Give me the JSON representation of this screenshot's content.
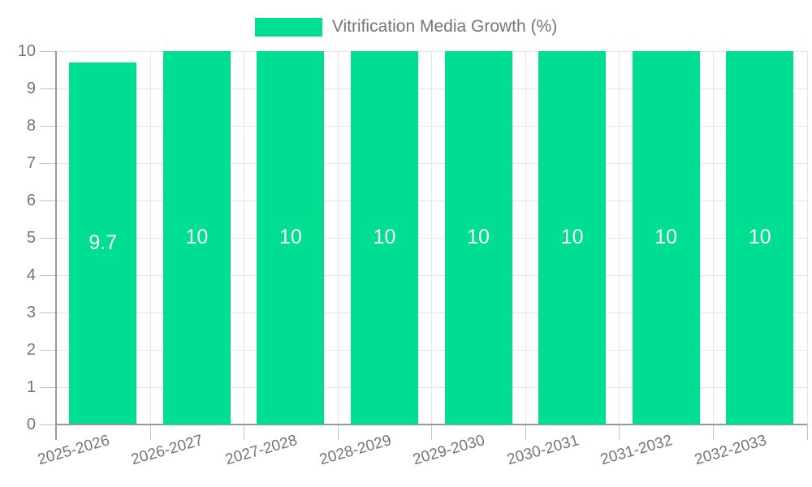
{
  "chart_data": {
    "type": "bar",
    "legend_label": "Vitrification Media Growth (%)",
    "legend_position": "top",
    "categories": [
      "2025-2026",
      "2026-2027",
      "2027-2028",
      "2028-2029",
      "2029-2030",
      "2030-2031",
      "2031-2032",
      "2032-2033"
    ],
    "values": [
      9.7,
      10,
      10,
      10,
      10,
      10,
      10,
      10
    ],
    "value_labels": [
      "9.7",
      "10",
      "10",
      "10",
      "10",
      "10",
      "10",
      "10"
    ],
    "title": "",
    "xlabel": "",
    "ylabel": "",
    "ylim": [
      0,
      10
    ],
    "yticks": [
      0,
      1,
      2,
      3,
      4,
      5,
      6,
      7,
      8,
      9,
      10
    ],
    "grid": true,
    "bar_color": "#00DE92",
    "value_label_color": "#ffffff",
    "axis_text_color": "#757575"
  }
}
